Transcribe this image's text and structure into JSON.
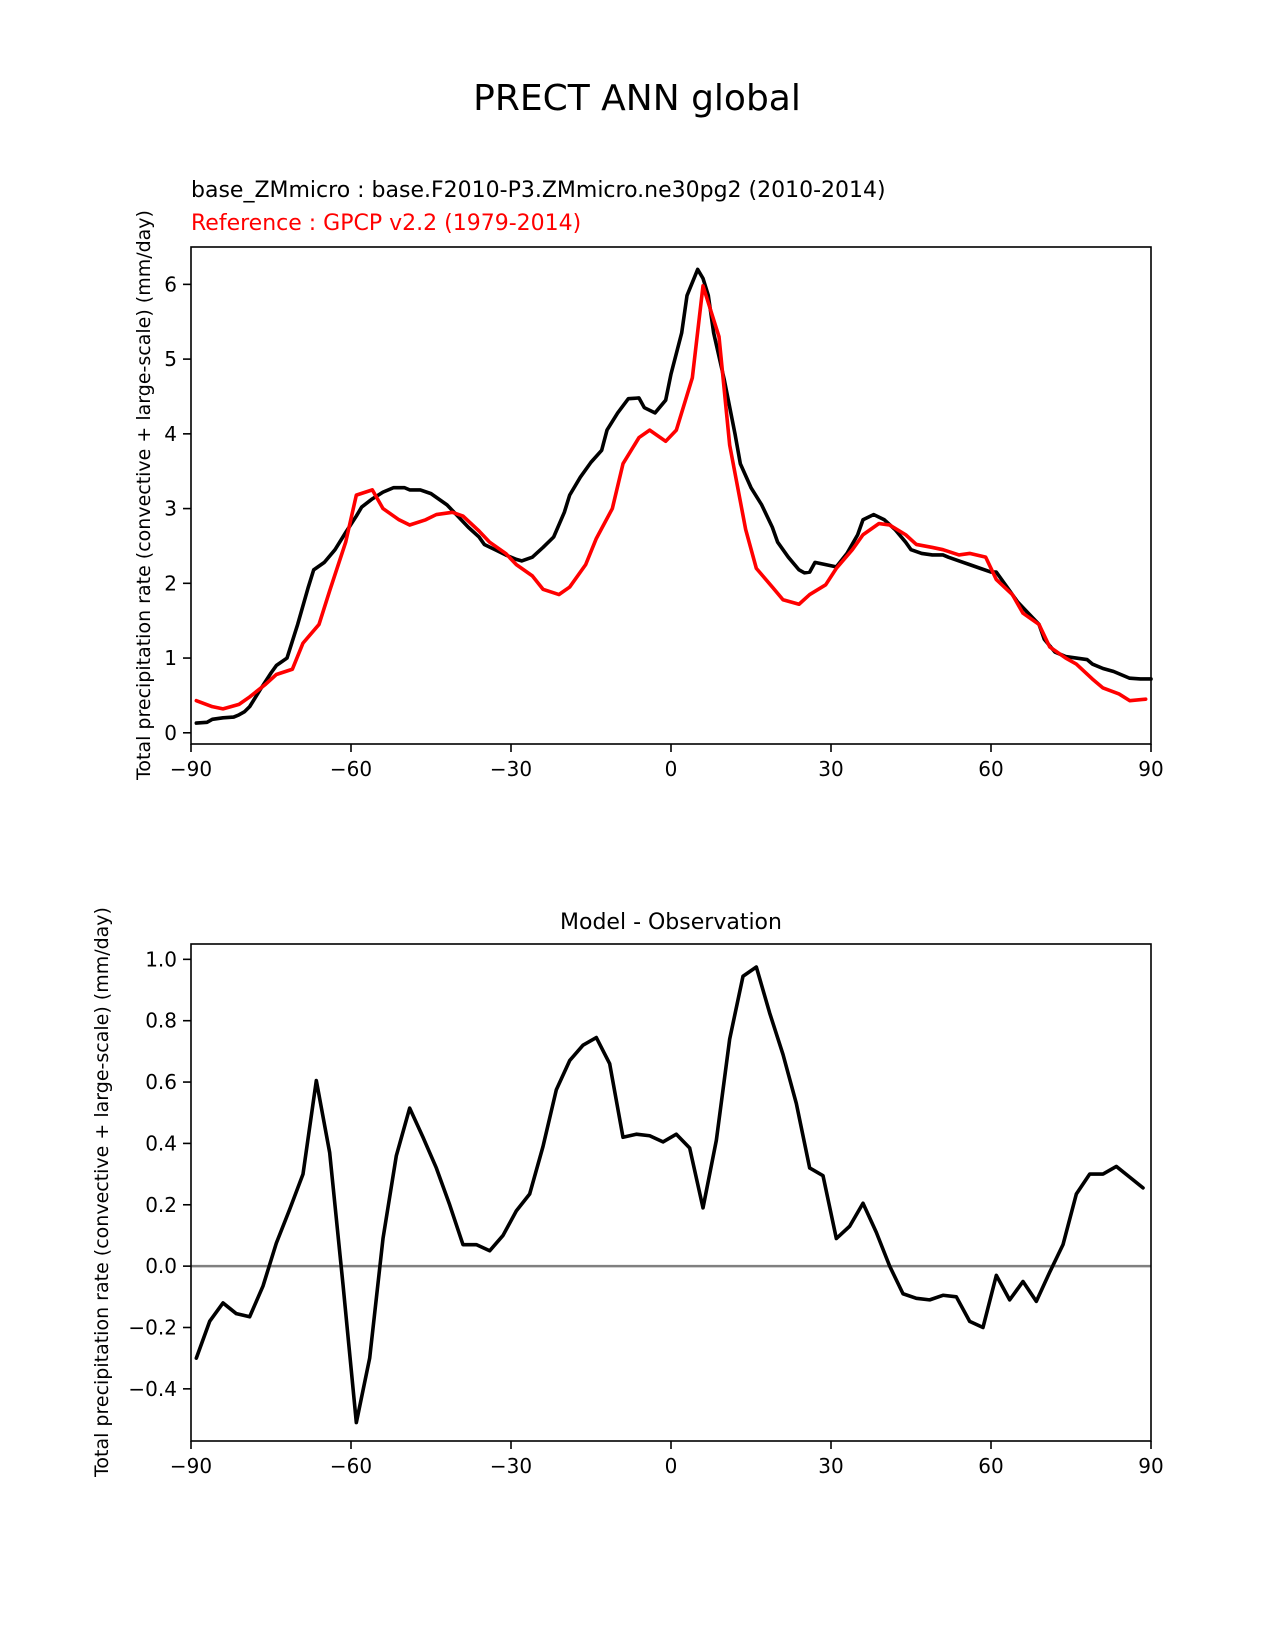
{
  "figure": {
    "title": "PRECT ANN global"
  },
  "chart_data": [
    {
      "type": "line",
      "test_label": "base_ZMmicro : base.F2010-P3.ZMmicro.ne30pg2 (2010-2014)",
      "ref_label": "Reference : GPCP v2.2 (1979-2014)",
      "ylabel": "Total precipitation rate (convective + large-scale) (mm/day)",
      "xlabel": "",
      "xlim": [
        -90,
        90
      ],
      "ylim": [
        -0.15,
        6.5
      ],
      "xticks": [
        -90,
        -60,
        -30,
        0,
        30,
        60,
        90
      ],
      "yticks": [
        0,
        1,
        2,
        3,
        4,
        5,
        6
      ],
      "xtick_labels": [
        "−90",
        "−60",
        "−30",
        "0",
        "30",
        "60",
        "90"
      ],
      "ytick_labels": [
        "0",
        "1",
        "2",
        "3",
        "4",
        "5",
        "6"
      ],
      "colors": {
        "test": "#000000",
        "ref": "#ff0000"
      },
      "series": [
        {
          "name": "base_ZMmicro",
          "color": "#000000",
          "x": [
            -89,
            -87,
            -86,
            -84,
            -82,
            -81,
            -80,
            -79,
            -77,
            -75,
            -74,
            -72,
            -70,
            -68,
            -67,
            -65,
            -63,
            -61,
            -59,
            -58,
            -56,
            -54,
            -52,
            -50,
            -49,
            -47,
            -45,
            -44,
            -42,
            -40,
            -38,
            -36,
            -35,
            -33,
            -31,
            -29,
            -28,
            -26,
            -24,
            -22,
            -20,
            -19,
            -17,
            -15,
            -13,
            -12,
            -10,
            -8,
            -6,
            -5,
            -3,
            -1,
            0,
            2,
            3,
            5,
            6,
            7,
            8,
            10,
            12,
            13,
            15,
            17,
            19,
            20,
            22,
            24,
            25,
            26,
            27,
            29,
            31,
            33,
            35,
            36,
            38,
            40,
            42,
            44,
            45,
            47,
            49,
            51,
            52,
            54,
            56,
            58,
            60,
            61,
            63,
            65,
            67,
            69,
            70,
            72,
            74,
            76,
            78,
            79,
            81,
            83,
            85,
            86,
            88,
            90
          ],
          "values": [
            0.13,
            0.14,
            0.18,
            0.2,
            0.21,
            0.24,
            0.28,
            0.35,
            0.58,
            0.8,
            0.9,
            1.0,
            1.45,
            1.95,
            2.18,
            2.28,
            2.45,
            2.68,
            2.9,
            3.02,
            3.13,
            3.22,
            3.28,
            3.28,
            3.25,
            3.25,
            3.2,
            3.15,
            3.05,
            2.9,
            2.75,
            2.62,
            2.52,
            2.45,
            2.38,
            2.32,
            2.3,
            2.35,
            2.48,
            2.62,
            2.95,
            3.18,
            3.42,
            3.62,
            3.78,
            4.05,
            4.28,
            4.47,
            4.48,
            4.35,
            4.28,
            4.45,
            4.8,
            5.35,
            5.85,
            6.2,
            6.08,
            5.85,
            5.35,
            4.72,
            4.0,
            3.6,
            3.28,
            3.05,
            2.75,
            2.55,
            2.35,
            2.18,
            2.14,
            2.15,
            2.28,
            2.25,
            2.22,
            2.4,
            2.65,
            2.85,
            2.92,
            2.85,
            2.72,
            2.55,
            2.45,
            2.4,
            2.38,
            2.38,
            2.35,
            2.3,
            2.25,
            2.2,
            2.15,
            2.15,
            1.95,
            1.75,
            1.6,
            1.45,
            1.25,
            1.08,
            1.02,
            1.0,
            0.98,
            0.92,
            0.86,
            0.82,
            0.76,
            0.73,
            0.72,
            0.72
          ]
        },
        {
          "name": "GPCP v2.2",
          "color": "#ff0000",
          "x": [
            -89,
            -86,
            -84,
            -81,
            -79,
            -76,
            -74,
            -71,
            -69,
            -66,
            -64,
            -61,
            -59,
            -56,
            -54,
            -51,
            -49,
            -46,
            -44,
            -41,
            -39,
            -36,
            -34,
            -31,
            -29,
            -26,
            -24,
            -21,
            -19,
            -16,
            -14,
            -11,
            -9,
            -6,
            -4,
            -1,
            1,
            4,
            6,
            9,
            11,
            14,
            16,
            19,
            21,
            24,
            26,
            29,
            31,
            34,
            36,
            39,
            41,
            44,
            46,
            49,
            51,
            54,
            56,
            59,
            61,
            64,
            66,
            69,
            71,
            74,
            76,
            79,
            81,
            84,
            86,
            89
          ],
          "values": [
            0.43,
            0.35,
            0.32,
            0.38,
            0.48,
            0.65,
            0.78,
            0.85,
            1.2,
            1.45,
            1.9,
            2.55,
            3.18,
            3.25,
            3.0,
            2.85,
            2.78,
            2.85,
            2.92,
            2.95,
            2.9,
            2.7,
            2.55,
            2.4,
            2.25,
            2.1,
            1.92,
            1.85,
            1.95,
            2.25,
            2.6,
            3.0,
            3.6,
            3.95,
            4.05,
            3.9,
            4.05,
            4.75,
            5.98,
            5.3,
            3.85,
            2.72,
            2.2,
            1.95,
            1.78,
            1.72,
            1.85,
            1.98,
            2.2,
            2.45,
            2.65,
            2.8,
            2.78,
            2.65,
            2.52,
            2.48,
            2.45,
            2.38,
            2.4,
            2.35,
            2.05,
            1.85,
            1.6,
            1.45,
            1.15,
            1.0,
            0.92,
            0.72,
            0.6,
            0.52,
            0.43,
            0.45
          ]
        }
      ]
    },
    {
      "type": "line",
      "title": "Model - Observation",
      "ylabel": "Total precipitation rate (convective + large-scale) (mm/day)",
      "xlabel": "",
      "xlim": [
        -90,
        90
      ],
      "ylim": [
        -0.57,
        1.05
      ],
      "xticks": [
        -90,
        -60,
        -30,
        0,
        30,
        60,
        90
      ],
      "yticks": [
        -0.4,
        -0.2,
        0.0,
        0.2,
        0.4,
        0.6,
        0.8,
        1.0
      ],
      "xtick_labels": [
        "−90",
        "−60",
        "−30",
        "0",
        "30",
        "60",
        "90"
      ],
      "ytick_labels": [
        "−0.4",
        "−0.2",
        "0.0",
        "0.2",
        "0.4",
        "0.6",
        "0.8",
        "1.0"
      ],
      "zero_line_color": "#808080",
      "series": [
        {
          "color": "#000000",
          "x": [
            -89,
            -86.5,
            -84,
            -81.5,
            -79,
            -76.5,
            -74,
            -71.5,
            -69,
            -66.5,
            -64,
            -61.5,
            -59,
            -56.5,
            -54,
            -51.5,
            -49,
            -46.5,
            -44,
            -41.5,
            -39,
            -36.5,
            -34,
            -31.5,
            -29,
            -26.5,
            -24,
            -21.5,
            -19,
            -16.5,
            -14,
            -11.5,
            -9,
            -6.5,
            -4,
            -1.5,
            1,
            3.5,
            6,
            8.5,
            11,
            13.5,
            16,
            18.5,
            21,
            23.5,
            26,
            28.5,
            31,
            33.5,
            36,
            38.5,
            41,
            43.5,
            46,
            48.5,
            51,
            53.5,
            56,
            58.5,
            61,
            63.5,
            66,
            68.5,
            71,
            73.5,
            76,
            78.5,
            81,
            83.5,
            86,
            88.5
          ],
          "values": [
            -0.3,
            -0.18,
            -0.12,
            -0.155,
            -0.165,
            -0.065,
            0.075,
            0.185,
            0.3,
            0.605,
            0.37,
            -0.06,
            -0.51,
            -0.3,
            0.09,
            0.36,
            0.515,
            0.42,
            0.32,
            0.2,
            0.07,
            0.07,
            0.05,
            0.1,
            0.18,
            0.235,
            0.39,
            0.575,
            0.67,
            0.72,
            0.745,
            0.66,
            0.42,
            0.43,
            0.425,
            0.405,
            0.43,
            0.385,
            0.19,
            0.41,
            0.74,
            0.945,
            0.975,
            0.825,
            0.69,
            0.53,
            0.32,
            0.295,
            0.09,
            0.13,
            0.205,
            0.11,
            0.0,
            -0.09,
            -0.105,
            -0.11,
            -0.095,
            -0.1,
            -0.18,
            -0.2,
            -0.03,
            -0.11,
            -0.05,
            -0.115,
            -0.02,
            0.07,
            0.235,
            0.3,
            0.3,
            0.325,
            0.29,
            0.255
          ]
        }
      ]
    }
  ]
}
